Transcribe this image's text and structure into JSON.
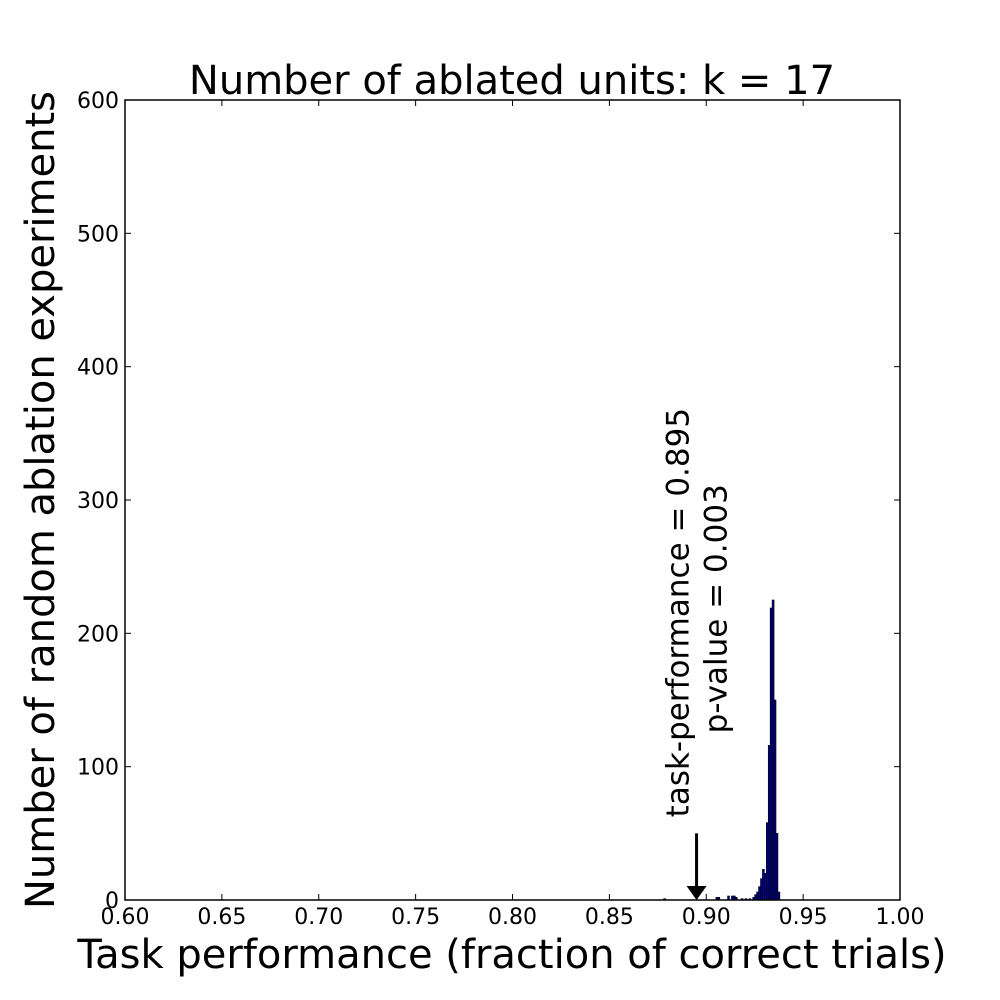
{
  "chart_data": {
    "type": "bar",
    "title": "Number of ablated units: k = 17",
    "xlabel": "Task performance (fraction of correct trials)",
    "ylabel": "Number of random ablation experiments",
    "xlim": [
      0.6,
      1.0
    ],
    "ylim": [
      0,
      600
    ],
    "xticks": [
      "0.60",
      "0.65",
      "0.70",
      "0.75",
      "0.80",
      "0.85",
      "0.90",
      "0.95",
      "1.00"
    ],
    "yticks": [
      "0",
      "100",
      "200",
      "300",
      "400",
      "500",
      "600"
    ],
    "grid": false,
    "bar_color": "#00008b",
    "bin_width": 0.001,
    "bins": [
      {
        "x": 0.878,
        "count": 1
      },
      {
        "x": 0.905,
        "count": 2
      },
      {
        "x": 0.906,
        "count": 2
      },
      {
        "x": 0.911,
        "count": 3
      },
      {
        "x": 0.913,
        "count": 3
      },
      {
        "x": 0.914,
        "count": 3
      },
      {
        "x": 0.915,
        "count": 2
      },
      {
        "x": 0.918,
        "count": 1
      },
      {
        "x": 0.92,
        "count": 1
      },
      {
        "x": 0.922,
        "count": 1
      },
      {
        "x": 0.924,
        "count": 2
      },
      {
        "x": 0.925,
        "count": 4
      },
      {
        "x": 0.926,
        "count": 6
      },
      {
        "x": 0.927,
        "count": 10
      },
      {
        "x": 0.928,
        "count": 16
      },
      {
        "x": 0.929,
        "count": 23
      },
      {
        "x": 0.93,
        "count": 20
      },
      {
        "x": 0.931,
        "count": 58
      },
      {
        "x": 0.932,
        "count": 116
      },
      {
        "x": 0.933,
        "count": 219
      },
      {
        "x": 0.934,
        "count": 225
      },
      {
        "x": 0.935,
        "count": 150
      },
      {
        "x": 0.936,
        "count": 50
      },
      {
        "x": 0.937,
        "count": 6
      }
    ],
    "annotations": [
      {
        "text": "task-performance = 0.895",
        "x": 0.895
      },
      {
        "text": "p-value = 0.003",
        "x": 0.895
      }
    ],
    "arrow": {
      "x": 0.895,
      "from_y": 50,
      "to_y": 0
    }
  }
}
